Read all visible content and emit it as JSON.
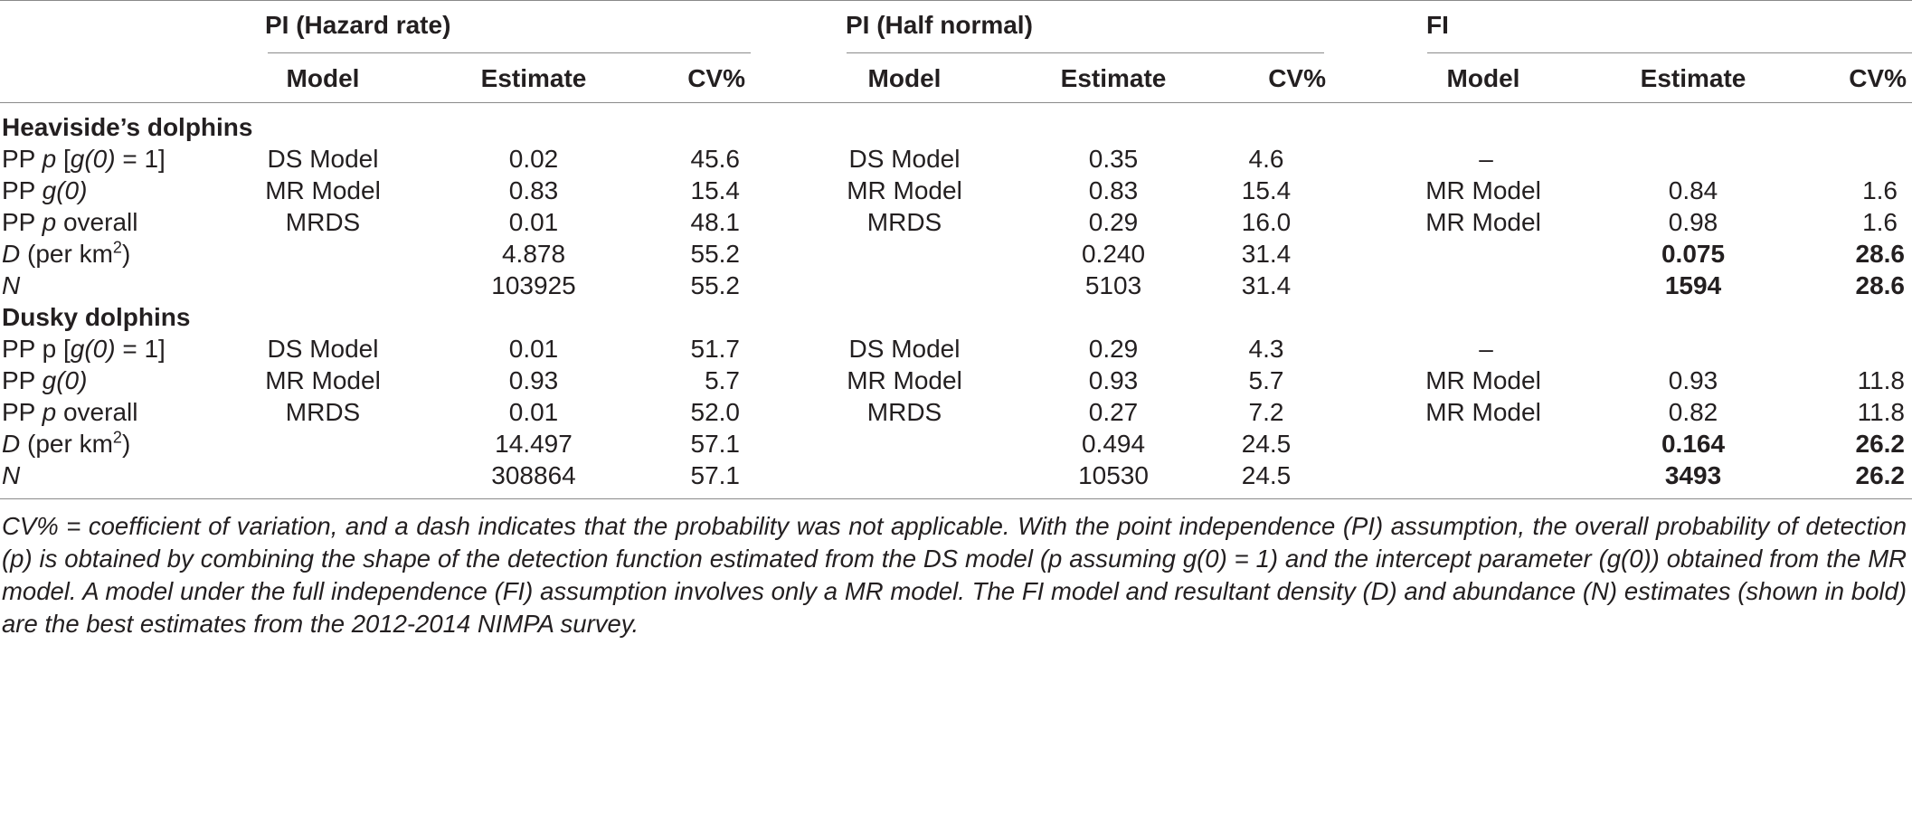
{
  "table": {
    "groups": [
      "PI (Hazard rate)",
      "PI (Half normal)",
      "FI"
    ],
    "columns": [
      "Model",
      "Estimate",
      "CV%"
    ],
    "sections": [
      {
        "title": "Heaviside’s dolphins",
        "rows": [
          {
            "pre": "PP ",
            "var": "p",
            "post": " [",
            "var2": "g(0)",
            "post2": " = 1]",
            "cells": [
              "DS Model",
              "0.02",
              "45.6",
              "DS Model",
              "0.35",
              "4.6",
              "–",
              "",
              ""
            ]
          },
          {
            "pre": "PP ",
            "var": "g(0)",
            "post": "",
            "var2": "",
            "post2": "",
            "cells": [
              "MR Model",
              "0.83",
              "15.4",
              "MR Model",
              "0.83",
              "15.4",
              "MR Model",
              "0.84",
              "1.6"
            ]
          },
          {
            "pre": "PP ",
            "var": "p",
            "post": " overall",
            "var2": "",
            "post2": "",
            "cells": [
              "MRDS",
              "0.01",
              "48.1",
              "MRDS",
              "0.29",
              "16.0",
              "MR Model",
              "0.98",
              "1.6"
            ]
          },
          {
            "pre": "",
            "var": "D",
            "post": " (per km",
            "sup": "2",
            "post2": ")",
            "cells": [
              "",
              "4.878",
              "55.2",
              "",
              "0.240",
              "31.4",
              "",
              "0.075",
              "28.6"
            ]
          },
          {
            "pre": "",
            "var": "N",
            "post": "",
            "var2": "",
            "post2": "",
            "cells": [
              "",
              "103925",
              "55.2",
              "",
              "5103",
              "31.4",
              "",
              "1594",
              "28.6"
            ]
          }
        ]
      },
      {
        "title": "Dusky dolphins",
        "rows": [
          {
            "pre": "PP p [",
            "var": "g(0)",
            "post": " = 1]",
            "var2": "",
            "post2": "",
            "cells": [
              "DS Model",
              "0.01",
              "51.7",
              "DS Model",
              "0.29",
              "4.3",
              "–",
              "",
              ""
            ]
          },
          {
            "pre": "PP ",
            "var": "g(0)",
            "post": "",
            "var2": "",
            "post2": "",
            "cells": [
              "MR Model",
              "0.93",
              "5.7",
              "MR Model",
              "0.93",
              "5.7",
              "MR Model",
              "0.93",
              "11.8"
            ]
          },
          {
            "pre": "PP ",
            "var": "p",
            "post": " overall",
            "var2": "",
            "post2": "",
            "cells": [
              "MRDS",
              "0.01",
              "52.0",
              "MRDS",
              "0.27",
              "7.2",
              "MR Model",
              "0.82",
              "11.8"
            ]
          },
          {
            "pre": "",
            "var": "D",
            "post": " (per km",
            "sup": "2",
            "post2": ")",
            "cells": [
              "",
              "14.497",
              "57.1",
              "",
              "0.494",
              "24.5",
              "",
              "0.164",
              "26.2"
            ]
          },
          {
            "pre": "",
            "var": "N",
            "post": "",
            "var2": "",
            "post2": "",
            "cells": [
              "",
              "308864",
              "57.1",
              "",
              "10530",
              "24.5",
              "",
              "3493",
              "26.2"
            ]
          }
        ]
      }
    ],
    "footnote": "CV% = coefficient of variation, and a dash indicates that the probability was not applicable. With the point independence (PI) assumption, the overall probability of detection (p) is obtained by combining the shape of the detection function estimated from the DS model (p assuming g(0) = 1) and the intercept parameter (g(0)) obtained from the MR model. A model under the full independence (FI) assumption involves only a MR model. The FI model and resultant density (D) and abundance (N) estimates (shown in bold) are the best estimates from the 2012-2014 NIMPA survey."
  }
}
